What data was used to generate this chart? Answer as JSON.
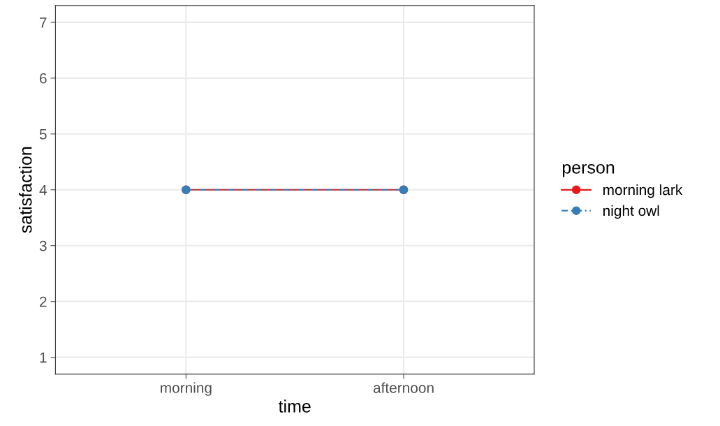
{
  "chart_data": {
    "type": "line",
    "xlabel": "time",
    "ylabel": "satisfaction",
    "legend_title": "person",
    "categories": [
      "morning",
      "afternoon"
    ],
    "series": [
      {
        "name": "morning lark",
        "color": "#e41a1c",
        "values": [
          4,
          4
        ],
        "line_style": "solid"
      },
      {
        "name": "night owl",
        "color": "#377eb8",
        "values": [
          4,
          4
        ],
        "line_style": "dashed"
      }
    ],
    "ylim": [
      0.7,
      7.3
    ],
    "yticks": [
      1,
      2,
      3,
      4,
      5,
      6,
      7
    ],
    "grid": true,
    "legend": "right",
    "marker": "circle"
  }
}
